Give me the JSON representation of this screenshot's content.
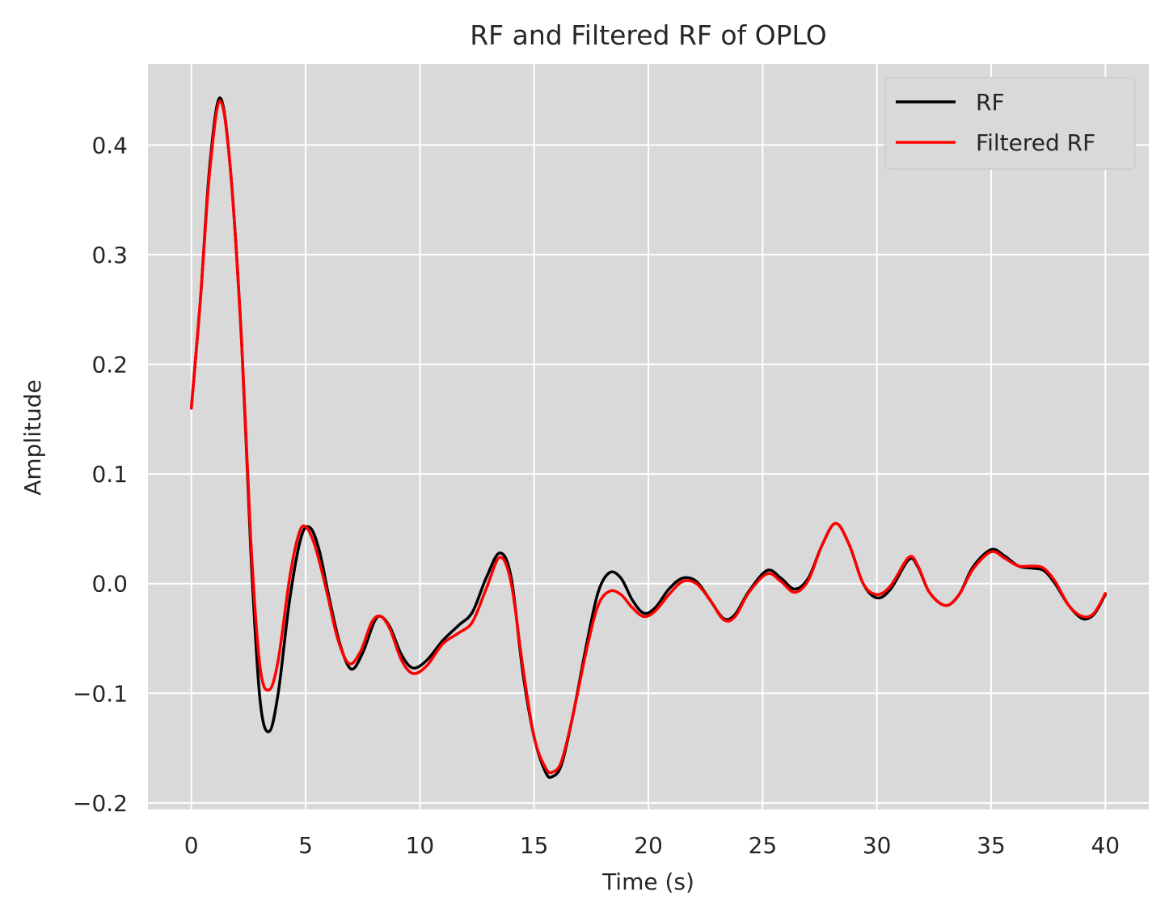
{
  "chart_data": {
    "type": "line",
    "title": "RF and Filtered RF of OPLO",
    "xlabel": "Time (s)",
    "ylabel": "Amplitude",
    "xlim": [
      -1.9,
      41.9
    ],
    "ylim": [
      -0.206,
      0.474
    ],
    "xticks": [
      0,
      5,
      10,
      15,
      20,
      25,
      30,
      35,
      40
    ],
    "xtick_labels": [
      "0",
      "5",
      "10",
      "15",
      "20",
      "25",
      "30",
      "35",
      "40"
    ],
    "yticks": [
      -0.2,
      -0.1,
      0.0,
      0.1,
      0.2,
      0.3,
      0.4
    ],
    "ytick_labels": [
      "−0.2",
      "−0.1",
      "0.0",
      "0.1",
      "0.2",
      "0.3",
      "0.4"
    ],
    "grid": true,
    "background": "#d9d9d9",
    "legend_position": "top-right",
    "series": [
      {
        "name": "RF",
        "color": "#000000",
        "points": [
          [
            0,
            0.16
          ],
          [
            0.4,
            0.26
          ],
          [
            0.8,
            0.38
          ],
          [
            1.25,
            0.443
          ],
          [
            1.7,
            0.38
          ],
          [
            2.2,
            0.22
          ],
          [
            2.6,
            0.03
          ],
          [
            3.0,
            -0.105
          ],
          [
            3.4,
            -0.135
          ],
          [
            3.8,
            -0.1
          ],
          [
            4.3,
            -0.015
          ],
          [
            4.8,
            0.042
          ],
          [
            5.2,
            0.051
          ],
          [
            5.6,
            0.03
          ],
          [
            6.0,
            -0.01
          ],
          [
            6.5,
            -0.055
          ],
          [
            7.0,
            -0.078
          ],
          [
            7.5,
            -0.063
          ],
          [
            8.0,
            -0.035
          ],
          [
            8.3,
            -0.03
          ],
          [
            8.7,
            -0.04
          ],
          [
            9.2,
            -0.065
          ],
          [
            9.7,
            -0.077
          ],
          [
            10.3,
            -0.07
          ],
          [
            11.0,
            -0.052
          ],
          [
            11.7,
            -0.038
          ],
          [
            12.3,
            -0.026
          ],
          [
            12.9,
            0.005
          ],
          [
            13.5,
            0.028
          ],
          [
            14.0,
            0.005
          ],
          [
            14.5,
            -0.08
          ],
          [
            15.0,
            -0.14
          ],
          [
            15.5,
            -0.172
          ],
          [
            15.8,
            -0.176
          ],
          [
            16.2,
            -0.165
          ],
          [
            16.7,
            -0.12
          ],
          [
            17.3,
            -0.055
          ],
          [
            17.8,
            -0.008
          ],
          [
            18.3,
            0.01
          ],
          [
            18.8,
            0.005
          ],
          [
            19.3,
            -0.015
          ],
          [
            19.8,
            -0.027
          ],
          [
            20.3,
            -0.022
          ],
          [
            20.9,
            -0.005
          ],
          [
            21.5,
            0.005
          ],
          [
            22.1,
            0.002
          ],
          [
            22.7,
            -0.015
          ],
          [
            23.3,
            -0.032
          ],
          [
            23.8,
            -0.028
          ],
          [
            24.4,
            -0.007
          ],
          [
            25.2,
            0.012
          ],
          [
            25.8,
            0.005
          ],
          [
            26.4,
            -0.005
          ],
          [
            27.0,
            0.005
          ],
          [
            27.6,
            0.035
          ],
          [
            28.2,
            0.055
          ],
          [
            28.8,
            0.035
          ],
          [
            29.4,
            0.0
          ],
          [
            30.0,
            -0.013
          ],
          [
            30.6,
            -0.005
          ],
          [
            31.4,
            0.022
          ],
          [
            31.8,
            0.015
          ],
          [
            32.3,
            -0.008
          ],
          [
            33.0,
            -0.02
          ],
          [
            33.6,
            -0.01
          ],
          [
            34.2,
            0.015
          ],
          [
            35.0,
            0.031
          ],
          [
            35.6,
            0.025
          ],
          [
            36.2,
            0.016
          ],
          [
            36.8,
            0.014
          ],
          [
            37.3,
            0.012
          ],
          [
            37.8,
            0.0
          ],
          [
            38.4,
            -0.02
          ],
          [
            39.0,
            -0.032
          ],
          [
            39.5,
            -0.028
          ],
          [
            40.0,
            -0.01
          ]
        ]
      },
      {
        "name": "Filtered RF",
        "color": "#ff0000",
        "points": [
          [
            0,
            0.16
          ],
          [
            0.4,
            0.26
          ],
          [
            0.8,
            0.375
          ],
          [
            1.25,
            0.44
          ],
          [
            1.7,
            0.38
          ],
          [
            2.2,
            0.22
          ],
          [
            2.6,
            0.04
          ],
          [
            3.0,
            -0.075
          ],
          [
            3.4,
            -0.097
          ],
          [
            3.8,
            -0.07
          ],
          [
            4.3,
            0.005
          ],
          [
            4.7,
            0.045
          ],
          [
            5.0,
            0.052
          ],
          [
            5.4,
            0.035
          ],
          [
            5.9,
            -0.005
          ],
          [
            6.4,
            -0.05
          ],
          [
            6.9,
            -0.073
          ],
          [
            7.4,
            -0.062
          ],
          [
            7.9,
            -0.035
          ],
          [
            8.3,
            -0.03
          ],
          [
            8.7,
            -0.042
          ],
          [
            9.2,
            -0.07
          ],
          [
            9.7,
            -0.082
          ],
          [
            10.3,
            -0.075
          ],
          [
            11.0,
            -0.055
          ],
          [
            11.7,
            -0.045
          ],
          [
            12.3,
            -0.035
          ],
          [
            12.9,
            -0.005
          ],
          [
            13.5,
            0.024
          ],
          [
            14.0,
            0.0
          ],
          [
            14.5,
            -0.075
          ],
          [
            15.0,
            -0.14
          ],
          [
            15.5,
            -0.168
          ],
          [
            15.8,
            -0.172
          ],
          [
            16.2,
            -0.162
          ],
          [
            16.7,
            -0.12
          ],
          [
            17.3,
            -0.06
          ],
          [
            17.8,
            -0.02
          ],
          [
            18.3,
            -0.007
          ],
          [
            18.8,
            -0.01
          ],
          [
            19.3,
            -0.022
          ],
          [
            19.8,
            -0.03
          ],
          [
            20.3,
            -0.025
          ],
          [
            20.9,
            -0.01
          ],
          [
            21.5,
            0.002
          ],
          [
            22.1,
            0.0
          ],
          [
            22.7,
            -0.015
          ],
          [
            23.3,
            -0.033
          ],
          [
            23.8,
            -0.03
          ],
          [
            24.4,
            -0.008
          ],
          [
            25.2,
            0.009
          ],
          [
            25.8,
            0.002
          ],
          [
            26.4,
            -0.008
          ],
          [
            27.0,
            0.003
          ],
          [
            27.6,
            0.035
          ],
          [
            28.2,
            0.055
          ],
          [
            28.8,
            0.035
          ],
          [
            29.4,
            0.0
          ],
          [
            30.0,
            -0.01
          ],
          [
            30.6,
            -0.002
          ],
          [
            31.4,
            0.024
          ],
          [
            31.8,
            0.016
          ],
          [
            32.3,
            -0.008
          ],
          [
            33.0,
            -0.02
          ],
          [
            33.6,
            -0.01
          ],
          [
            34.2,
            0.013
          ],
          [
            35.0,
            0.029
          ],
          [
            35.6,
            0.023
          ],
          [
            36.2,
            0.016
          ],
          [
            36.8,
            0.016
          ],
          [
            37.3,
            0.014
          ],
          [
            37.8,
            0.002
          ],
          [
            38.4,
            -0.02
          ],
          [
            39.0,
            -0.03
          ],
          [
            39.5,
            -0.027
          ],
          [
            40.0,
            -0.009
          ]
        ]
      }
    ]
  }
}
